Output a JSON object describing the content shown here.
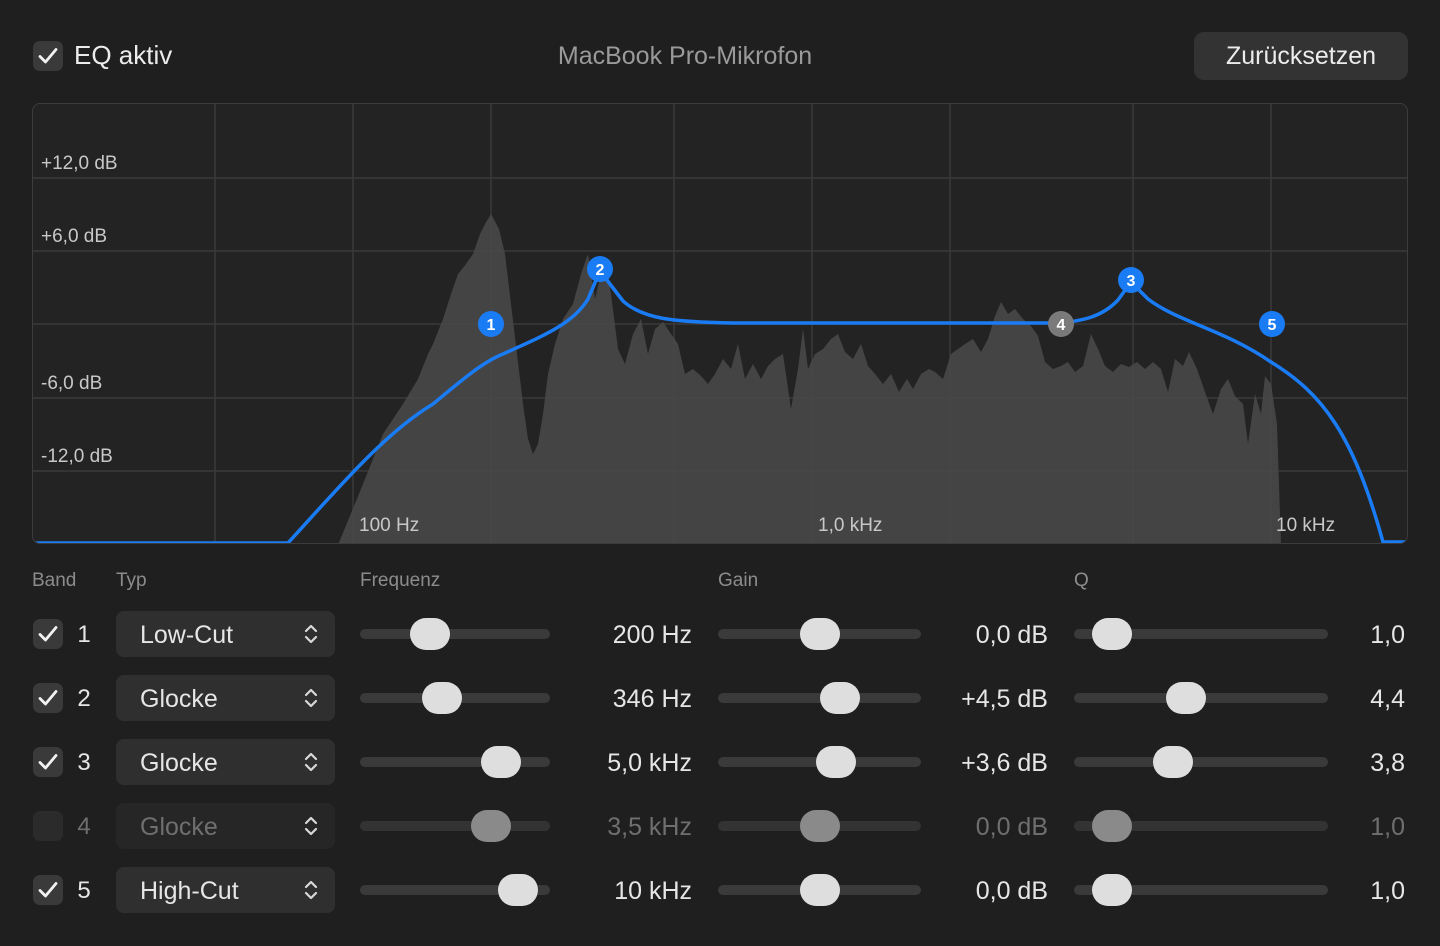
{
  "header": {
    "eq_label": "EQ aktiv",
    "eq_enabled": true,
    "device_title": "MacBook Pro-Mikrofon",
    "reset_label": "Zurücksetzen"
  },
  "graph": {
    "y_labels": [
      "+12,0 dB",
      "+6,0 dB",
      "-6,0 dB",
      "-12,0 dB"
    ],
    "x_labels": [
      "100 Hz",
      "1,0 kHz",
      "10 kHz"
    ],
    "curve_color": "#1a7cf5",
    "node_labels": [
      "1",
      "2",
      "3",
      "4",
      "5"
    ]
  },
  "columns": {
    "band": "Band",
    "type": "Typ",
    "frequency": "Frequenz",
    "gain": "Gain",
    "q": "Q"
  },
  "bands": [
    {
      "num": "1",
      "enabled": true,
      "type": "Low-Cut",
      "freq": "200 Hz",
      "gain": "0,0 dB",
      "q": "1,0",
      "freq_pos": 0.37,
      "gain_pos": 0.5,
      "q_pos": 0.15
    },
    {
      "num": "2",
      "enabled": true,
      "type": "Glocke",
      "freq": "346 Hz",
      "gain": "+4,5 dB",
      "q": "4,4",
      "freq_pos": 0.43,
      "gain_pos": 0.6,
      "q_pos": 0.44
    },
    {
      "num": "3",
      "enabled": true,
      "type": "Glocke",
      "freq": "5,0 kHz",
      "gain": "+3,6 dB",
      "q": "3,8",
      "freq_pos": 0.74,
      "gain_pos": 0.58,
      "q_pos": 0.39
    },
    {
      "num": "4",
      "enabled": false,
      "type": "Glocke",
      "freq": "3,5 kHz",
      "gain": "0,0 dB",
      "q": "1,0",
      "freq_pos": 0.69,
      "gain_pos": 0.5,
      "q_pos": 0.15
    },
    {
      "num": "5",
      "enabled": true,
      "type": "High-Cut",
      "freq": "10 kHz",
      "gain": "0,0 dB",
      "q": "1,0",
      "freq_pos": 0.83,
      "gain_pos": 0.5,
      "q_pos": 0.15
    }
  ],
  "colors": {
    "accent": "#1a7cf5",
    "disabled_node": "#7a7a7a"
  }
}
